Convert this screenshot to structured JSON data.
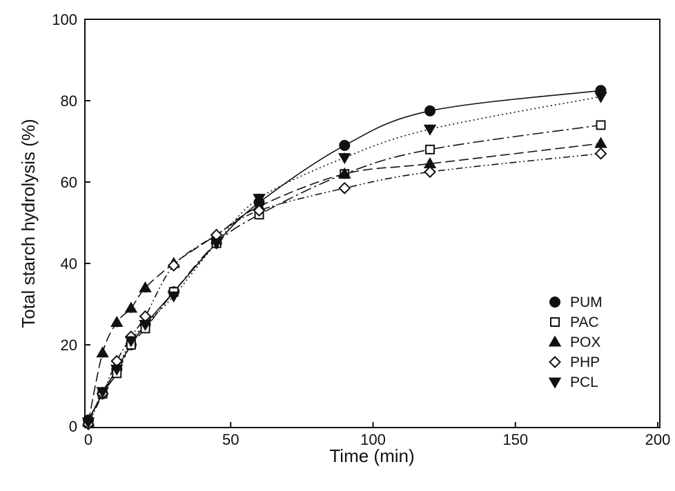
{
  "chart_data": {
    "type": "line",
    "title": "",
    "xlabel": "Time (min)",
    "ylabel": "Total starch hydrolysis (%)",
    "xlim": [
      0,
      200
    ],
    "ylim": [
      0,
      100
    ],
    "xticks": [
      0,
      50,
      100,
      150,
      200
    ],
    "yticks": [
      0,
      20,
      40,
      60,
      80,
      100
    ],
    "grid": false,
    "legend": "right",
    "x": [
      0,
      5,
      10,
      15,
      20,
      30,
      45,
      60,
      90,
      120,
      180
    ],
    "series": [
      {
        "name": "PUM",
        "marker": "circle",
        "line_style": "solid",
        "values": [
          1.5,
          8,
          14,
          20,
          25,
          33,
          45,
          55,
          69,
          77.5,
          82.5
        ]
      },
      {
        "name": "PAC",
        "marker": "square-open",
        "line_style": "dashdot",
        "values": [
          1,
          8,
          13,
          20,
          24,
          33,
          45,
          52,
          62,
          68,
          74
        ]
      },
      {
        "name": "POX",
        "marker": "triangle-up",
        "line_style": "dashed",
        "values": [
          1,
          18,
          25.5,
          29,
          34,
          40,
          47,
          54,
          62,
          64.5,
          69.5
        ]
      },
      {
        "name": "PHP",
        "marker": "diamond-open",
        "line_style": "dashdot2",
        "values": [
          0.5,
          8,
          16,
          22,
          27,
          39.5,
          47,
          53,
          58.5,
          62.5,
          67
        ]
      },
      {
        "name": "PCL",
        "marker": "triangle-down",
        "line_style": "dotted",
        "values": [
          1,
          8.5,
          14,
          21,
          25,
          32,
          45,
          56,
          66,
          73,
          81
        ]
      }
    ]
  }
}
